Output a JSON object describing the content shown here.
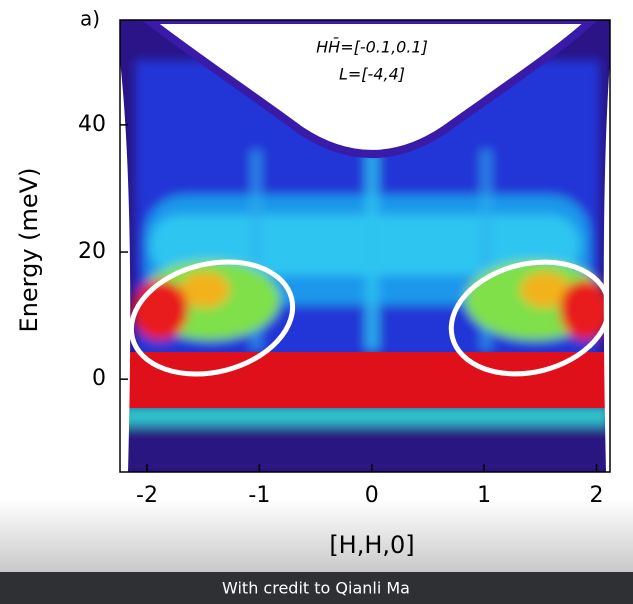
{
  "chart_data": {
    "type": "heatmap",
    "panel_label": "a)",
    "xlabel": "[H,H,0]",
    "ylabel": "Energy (meV)",
    "annotations": [
      "HH̄=[-0.1,0.1]",
      "L=[-4,4]"
    ],
    "xlim": [
      -2.24,
      2.12
    ],
    "xticks": [
      -2,
      -1,
      0,
      1,
      2
    ],
    "ylim": [
      -14.6,
      56.5
    ],
    "yticks": [
      0,
      20,
      40
    ],
    "caption": "With credit to Qianli Ma"
  }
}
